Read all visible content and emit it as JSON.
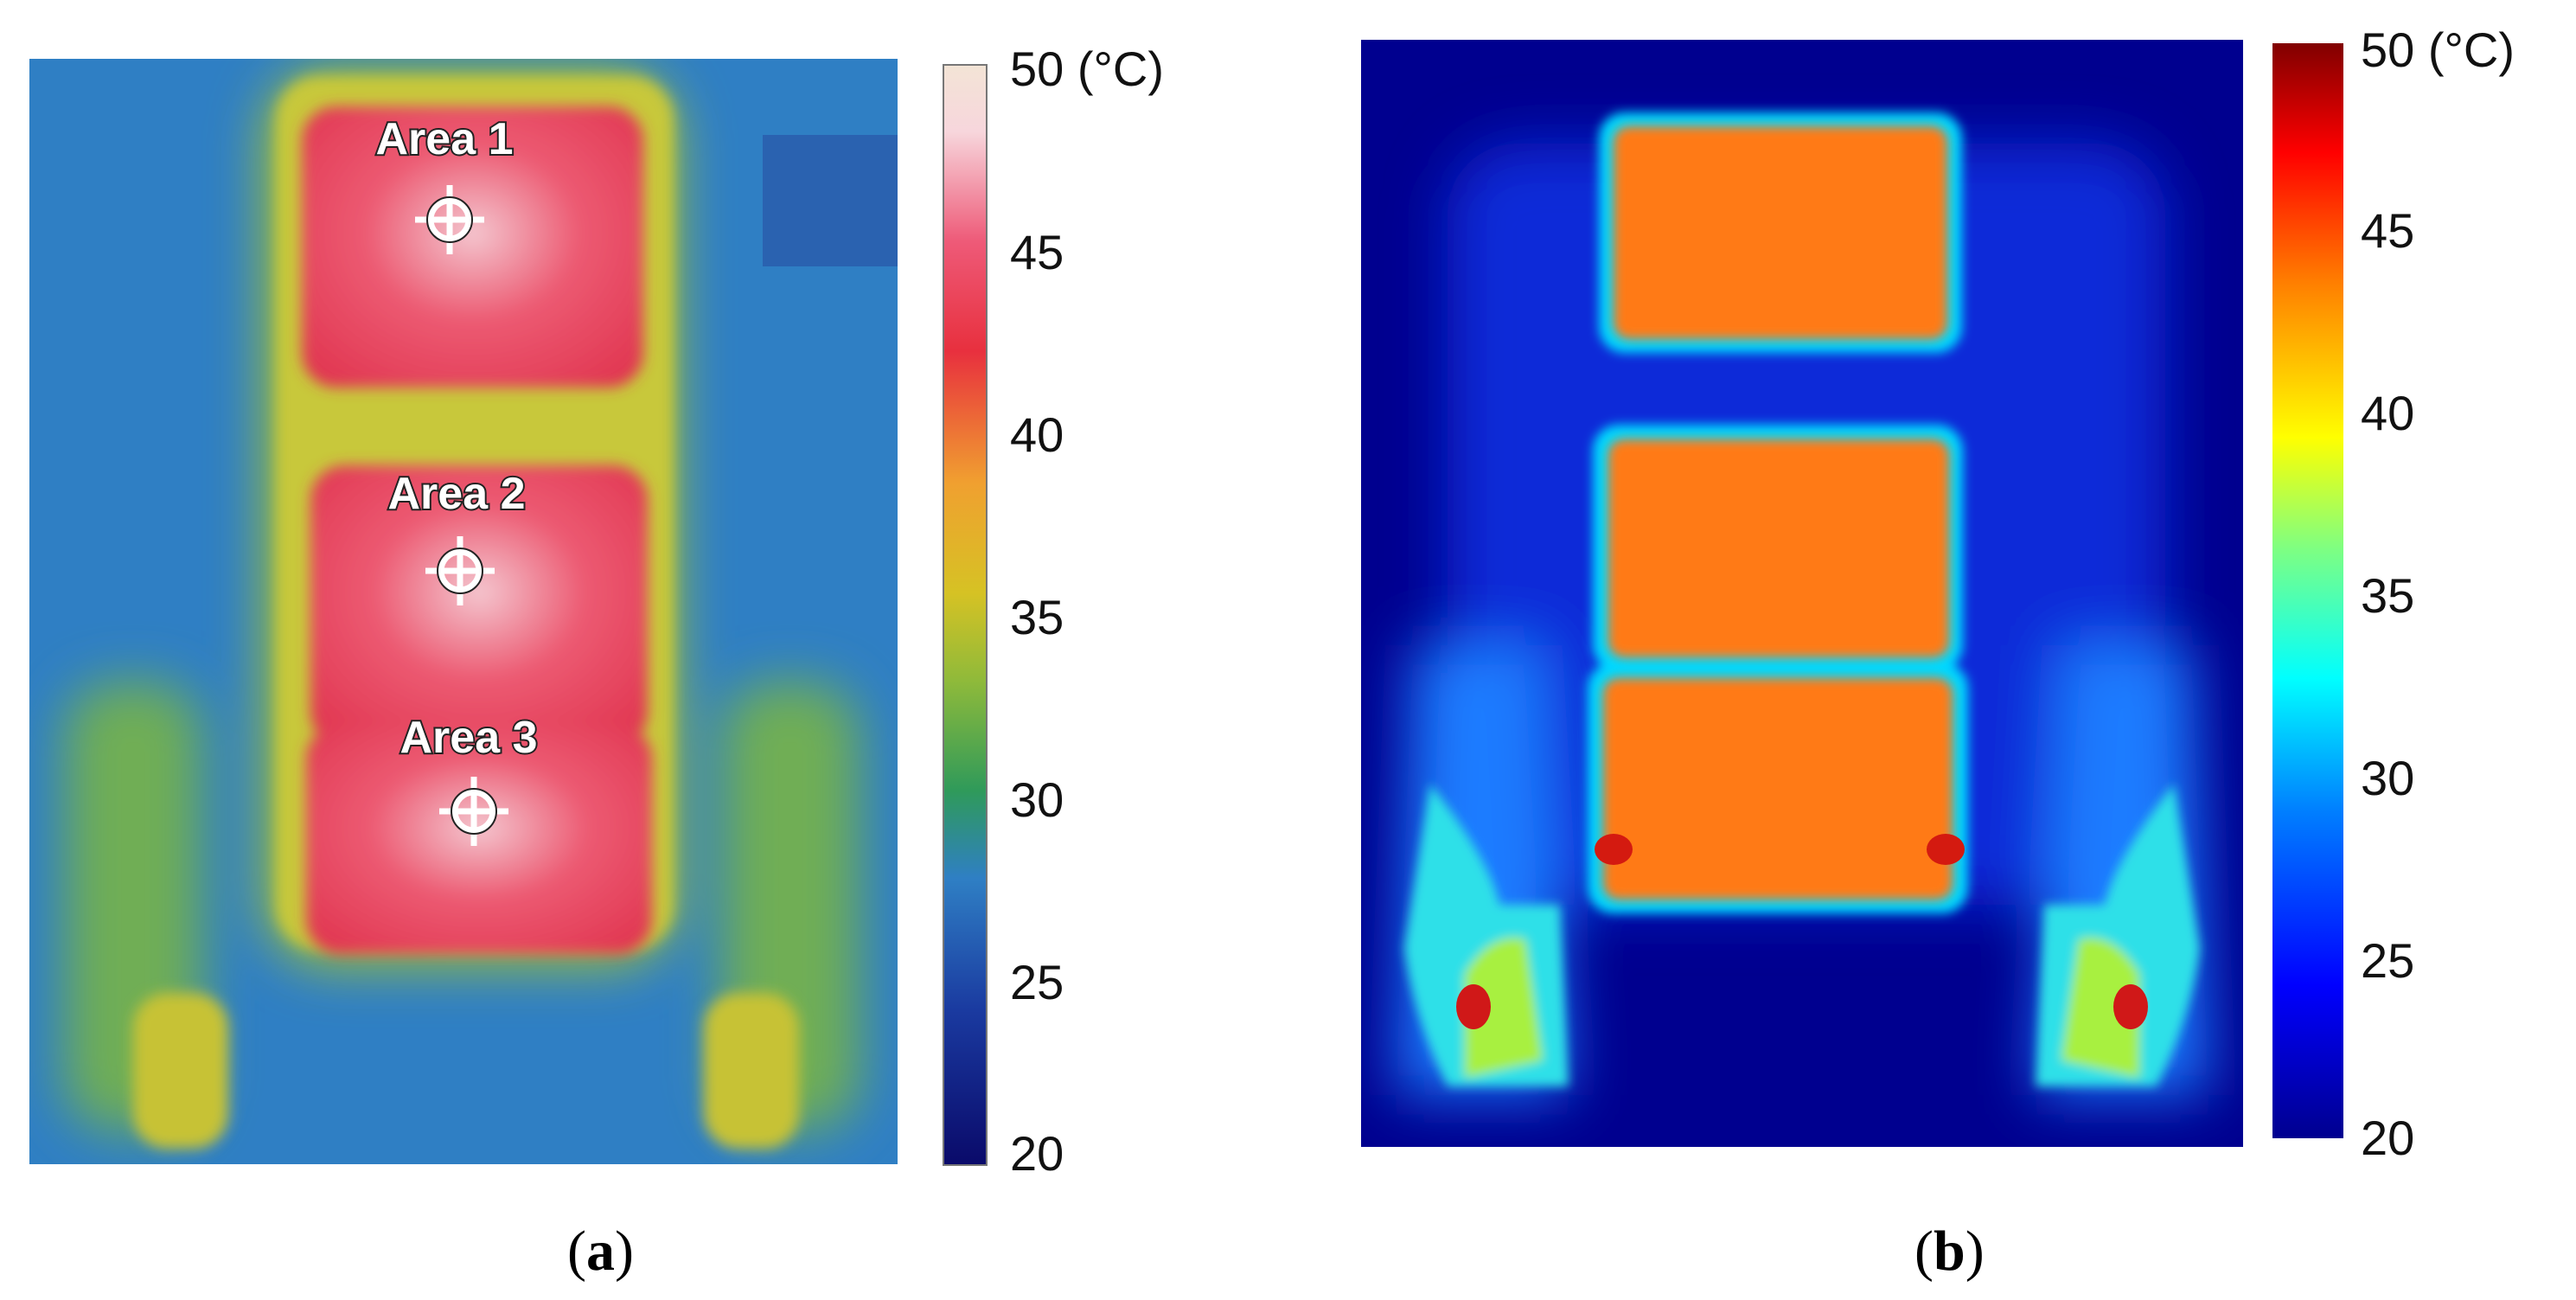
{
  "figure": {
    "panels": [
      {
        "id": "a",
        "caption_open": "(",
        "caption_letter": "a",
        "caption_close": ")",
        "description": "Infrared thermograph with three heated areas and crosshair markers",
        "areas": [
          "Area 1",
          "Area 2",
          "Area 3"
        ],
        "colorbar": {
          "min": 20,
          "max": 50,
          "ticks": [
            "50 (°C)",
            "45",
            "40",
            "35",
            "30",
            "25",
            "20"
          ],
          "colormap": "ironbow-like (navy-blue-green-yellow-orange-red-white)"
        }
      },
      {
        "id": "b",
        "caption_open": "(",
        "caption_letter": "b",
        "caption_close": ")",
        "description": "Simulated temperature field with three heated blocks",
        "colorbar": {
          "min": 20,
          "max": 50,
          "ticks": [
            "50 (°C)",
            "45",
            "40",
            "35",
            "30",
            "25",
            "20"
          ],
          "colormap": "jet"
        }
      }
    ]
  }
}
